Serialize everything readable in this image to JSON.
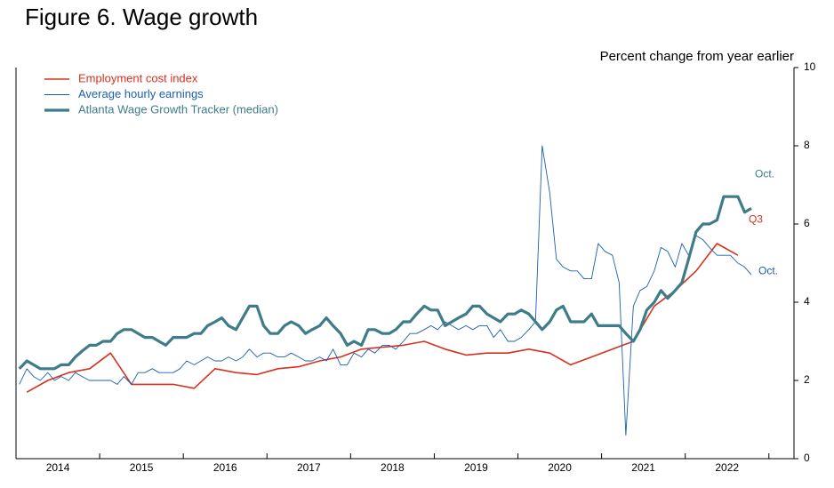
{
  "chart_data": {
    "type": "line",
    "title": "Figure 6. Wage growth",
    "y_axis_label": "Percent change from year earlier",
    "xlim": [
      2014,
      2023.3
    ],
    "xticks": [
      {
        "value": 2014.5,
        "label": "2014"
      },
      {
        "value": 2015.5,
        "label": "2015"
      },
      {
        "value": 2016.5,
        "label": "2016"
      },
      {
        "value": 2017.5,
        "label": "2017"
      },
      {
        "value": 2018.5,
        "label": "2018"
      },
      {
        "value": 2019.5,
        "label": "2019"
      },
      {
        "value": 2020.5,
        "label": "2020"
      },
      {
        "value": 2021.5,
        "label": "2021"
      },
      {
        "value": 2022.5,
        "label": "2022"
      }
    ],
    "x_minor_ticks": [
      2015,
      2016,
      2017,
      2018,
      2019,
      2020,
      2021,
      2022,
      2023
    ],
    "ylim": [
      0,
      10
    ],
    "yticks": [
      0,
      2,
      4,
      6,
      8,
      10
    ],
    "y_axis_side": "right",
    "legend": "top-left",
    "series": [
      {
        "name": "Employment cost index",
        "color": "#d7301f",
        "line_width": 1.6,
        "end_label": "Q3",
        "x": [
          2014.13,
          2014.38,
          2014.63,
          2014.88,
          2015.13,
          2015.38,
          2015.63,
          2015.88,
          2016.13,
          2016.38,
          2016.63,
          2016.88,
          2017.13,
          2017.38,
          2017.63,
          2017.88,
          2018.13,
          2018.38,
          2018.63,
          2018.88,
          2019.13,
          2019.38,
          2019.63,
          2019.88,
          2020.13,
          2020.38,
          2020.63,
          2020.88,
          2021.13,
          2021.38,
          2021.63,
          2021.88,
          2022.13,
          2022.38,
          2022.63
        ],
        "values": [
          1.7,
          2.0,
          2.2,
          2.3,
          2.7,
          1.9,
          1.9,
          1.9,
          1.8,
          2.3,
          2.2,
          2.15,
          2.3,
          2.35,
          2.5,
          2.6,
          2.8,
          2.85,
          2.9,
          3.0,
          2.8,
          2.65,
          2.7,
          2.7,
          2.8,
          2.7,
          2.4,
          2.6,
          2.8,
          3.0,
          3.9,
          4.3,
          4.8,
          5.5,
          5.2
        ]
      },
      {
        "name": "Average hourly earnings",
        "color": "#1b5fb0",
        "line_width": 0.9,
        "end_label": "Oct.",
        "x": [
          2014.04,
          2014.13,
          2014.21,
          2014.29,
          2014.38,
          2014.46,
          2014.54,
          2014.63,
          2014.71,
          2014.79,
          2014.88,
          2014.96,
          2015.04,
          2015.13,
          2015.21,
          2015.29,
          2015.38,
          2015.46,
          2015.54,
          2015.63,
          2015.71,
          2015.79,
          2015.88,
          2015.96,
          2016.04,
          2016.13,
          2016.21,
          2016.29,
          2016.38,
          2016.46,
          2016.54,
          2016.63,
          2016.71,
          2016.79,
          2016.88,
          2016.96,
          2017.04,
          2017.13,
          2017.21,
          2017.29,
          2017.38,
          2017.46,
          2017.54,
          2017.63,
          2017.71,
          2017.79,
          2017.88,
          2017.96,
          2018.04,
          2018.13,
          2018.21,
          2018.29,
          2018.38,
          2018.46,
          2018.54,
          2018.63,
          2018.71,
          2018.79,
          2018.88,
          2018.96,
          2019.04,
          2019.13,
          2019.21,
          2019.29,
          2019.38,
          2019.46,
          2019.54,
          2019.63,
          2019.71,
          2019.79,
          2019.88,
          2019.96,
          2020.04,
          2020.13,
          2020.21,
          2020.29,
          2020.38,
          2020.46,
          2020.54,
          2020.63,
          2020.71,
          2020.79,
          2020.88,
          2020.96,
          2021.04,
          2021.13,
          2021.21,
          2021.29,
          2021.38,
          2021.46,
          2021.54,
          2021.63,
          2021.71,
          2021.79,
          2021.88,
          2021.96,
          2022.04,
          2022.13,
          2022.21,
          2022.29,
          2022.38,
          2022.46,
          2022.54,
          2022.63,
          2022.71,
          2022.79
        ],
        "values": [
          1.9,
          2.3,
          2.1,
          2.0,
          2.2,
          2.0,
          2.1,
          2.0,
          2.2,
          2.1,
          2.0,
          2.0,
          2.0,
          2.0,
          1.9,
          2.1,
          1.9,
          2.2,
          2.2,
          2.3,
          2.2,
          2.2,
          2.2,
          2.3,
          2.5,
          2.4,
          2.5,
          2.6,
          2.5,
          2.5,
          2.6,
          2.5,
          2.6,
          2.8,
          2.6,
          2.7,
          2.7,
          2.6,
          2.6,
          2.7,
          2.6,
          2.5,
          2.5,
          2.6,
          2.5,
          2.8,
          2.4,
          2.4,
          2.7,
          2.6,
          2.8,
          2.7,
          2.9,
          2.9,
          2.8,
          3.0,
          3.2,
          3.2,
          3.3,
          3.4,
          3.3,
          3.5,
          3.4,
          3.3,
          3.4,
          3.3,
          3.4,
          3.4,
          3.1,
          3.3,
          3.0,
          3.0,
          3.1,
          3.3,
          3.5,
          8.0,
          6.8,
          5.1,
          4.9,
          4.8,
          4.8,
          4.6,
          4.6,
          5.5,
          5.3,
          5.2,
          4.5,
          0.6,
          3.9,
          4.3,
          4.4,
          4.8,
          5.4,
          5.3,
          4.9,
          5.5,
          5.2,
          5.7,
          5.6,
          5.4,
          5.2,
          5.2,
          5.2,
          5.0,
          4.9,
          4.7
        ]
      },
      {
        "name": "Atlanta Wage Growth Tracker (median)",
        "color": "#3d7c88",
        "line_width": 3.2,
        "end_label": "Oct.",
        "x": [
          2014.04,
          2014.13,
          2014.21,
          2014.29,
          2014.38,
          2014.46,
          2014.54,
          2014.63,
          2014.71,
          2014.79,
          2014.88,
          2014.96,
          2015.04,
          2015.13,
          2015.21,
          2015.29,
          2015.38,
          2015.46,
          2015.54,
          2015.63,
          2015.71,
          2015.79,
          2015.88,
          2015.96,
          2016.04,
          2016.13,
          2016.21,
          2016.29,
          2016.38,
          2016.46,
          2016.54,
          2016.63,
          2016.71,
          2016.79,
          2016.88,
          2016.96,
          2017.04,
          2017.13,
          2017.21,
          2017.29,
          2017.38,
          2017.46,
          2017.54,
          2017.63,
          2017.71,
          2017.79,
          2017.88,
          2017.96,
          2018.04,
          2018.13,
          2018.21,
          2018.29,
          2018.38,
          2018.46,
          2018.54,
          2018.63,
          2018.71,
          2018.79,
          2018.88,
          2018.96,
          2019.04,
          2019.13,
          2019.21,
          2019.29,
          2019.38,
          2019.46,
          2019.54,
          2019.63,
          2019.71,
          2019.79,
          2019.88,
          2019.96,
          2020.04,
          2020.13,
          2020.21,
          2020.29,
          2020.38,
          2020.46,
          2020.54,
          2020.63,
          2020.71,
          2020.79,
          2020.88,
          2020.96,
          2021.04,
          2021.13,
          2021.21,
          2021.29,
          2021.38,
          2021.46,
          2021.54,
          2021.63,
          2021.71,
          2021.79,
          2021.88,
          2021.96,
          2022.04,
          2022.13,
          2022.21,
          2022.29,
          2022.38,
          2022.46,
          2022.54,
          2022.63,
          2022.71,
          2022.79
        ],
        "values": [
          2.3,
          2.5,
          2.4,
          2.3,
          2.3,
          2.3,
          2.4,
          2.4,
          2.6,
          2.75,
          2.9,
          2.9,
          3.0,
          3.0,
          3.2,
          3.3,
          3.3,
          3.2,
          3.1,
          3.1,
          3.0,
          2.9,
          3.1,
          3.1,
          3.1,
          3.2,
          3.2,
          3.4,
          3.5,
          3.6,
          3.4,
          3.3,
          3.6,
          3.9,
          3.9,
          3.4,
          3.2,
          3.2,
          3.4,
          3.5,
          3.4,
          3.2,
          3.3,
          3.4,
          3.6,
          3.4,
          3.2,
          2.9,
          3.0,
          2.9,
          3.3,
          3.3,
          3.2,
          3.2,
          3.3,
          3.5,
          3.5,
          3.7,
          3.9,
          3.8,
          3.8,
          3.4,
          3.5,
          3.6,
          3.7,
          3.9,
          3.9,
          3.7,
          3.6,
          3.5,
          3.7,
          3.7,
          3.8,
          3.7,
          3.5,
          3.3,
          3.5,
          3.8,
          3.9,
          3.5,
          3.5,
          3.5,
          3.7,
          3.4,
          3.4,
          3.4,
          3.4,
          3.2,
          3.0,
          3.3,
          3.8,
          4.0,
          4.3,
          4.1,
          4.3,
          4.5,
          5.1,
          5.8,
          6.0,
          6.0,
          6.1,
          6.7,
          6.7,
          6.7,
          6.3,
          6.4
        ]
      }
    ]
  }
}
